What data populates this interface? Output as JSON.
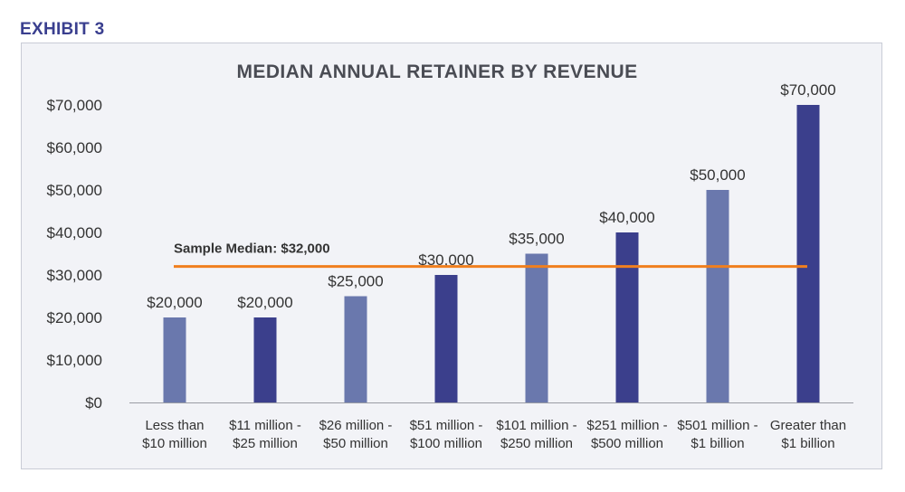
{
  "exhibit": "EXHIBIT 3",
  "chart_data": {
    "type": "bar",
    "title": "MEDIAN ANNUAL RETAINER BY REVENUE",
    "xlabel": "",
    "ylabel": "",
    "categories": [
      [
        "Less than",
        "$10 million"
      ],
      [
        "$11 million -",
        "$25 million"
      ],
      [
        "$26 million -",
        "$50 million"
      ],
      [
        "$51 million -",
        "$100 million"
      ],
      [
        "$101 million -",
        "$250 million"
      ],
      [
        "$251 million -",
        "$500 million"
      ],
      [
        "$501 million -",
        "$1 billion"
      ],
      [
        "Greater than",
        "$1 billion"
      ]
    ],
    "values": [
      20000,
      20000,
      25000,
      30000,
      35000,
      40000,
      50000,
      70000
    ],
    "data_labels": [
      "$20,000",
      "$20,000",
      "$25,000",
      "$30,000",
      "$35,000",
      "$40,000",
      "$50,000",
      "$70,000"
    ],
    "ylim": [
      0,
      70000
    ],
    "yticks": [
      0,
      10000,
      20000,
      30000,
      40000,
      50000,
      60000,
      70000
    ],
    "ytick_labels": [
      "$0",
      "$10,000",
      "$20,000",
      "$30,000",
      "$40,000",
      "$50,000",
      "$60,000",
      "$70,000"
    ],
    "bar_colors": [
      "#6a78ad",
      "#3b3f8c",
      "#6a78ad",
      "#3b3f8c",
      "#6a78ad",
      "#3b3f8c",
      "#6a78ad",
      "#3b3f8c"
    ],
    "reference_line": {
      "value": 32000,
      "label": "Sample Median: $32,000",
      "color": "#f07f1e"
    },
    "grid": false,
    "legend": "none"
  }
}
